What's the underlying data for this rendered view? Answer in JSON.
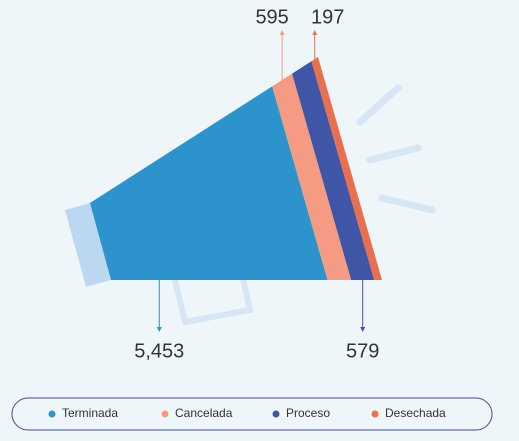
{
  "chart_data": {
    "type": "megaphone",
    "series": [
      {
        "name": "Terminada",
        "color": "#2d93cc",
        "values": [
          5453
        ],
        "value_labels": [
          "5,453"
        ]
      },
      {
        "name": "Cancelada",
        "color": "#f59b83",
        "values": [
          595
        ],
        "value_labels": [
          "595"
        ]
      },
      {
        "name": "Proceso",
        "color": "#3f55a6",
        "values": [
          579
        ],
        "value_labels": [
          "579"
        ]
      },
      {
        "name": "Desechada",
        "color": "#e8704f",
        "values": [
          197
        ],
        "value_labels": [
          "197"
        ]
      }
    ]
  }
}
